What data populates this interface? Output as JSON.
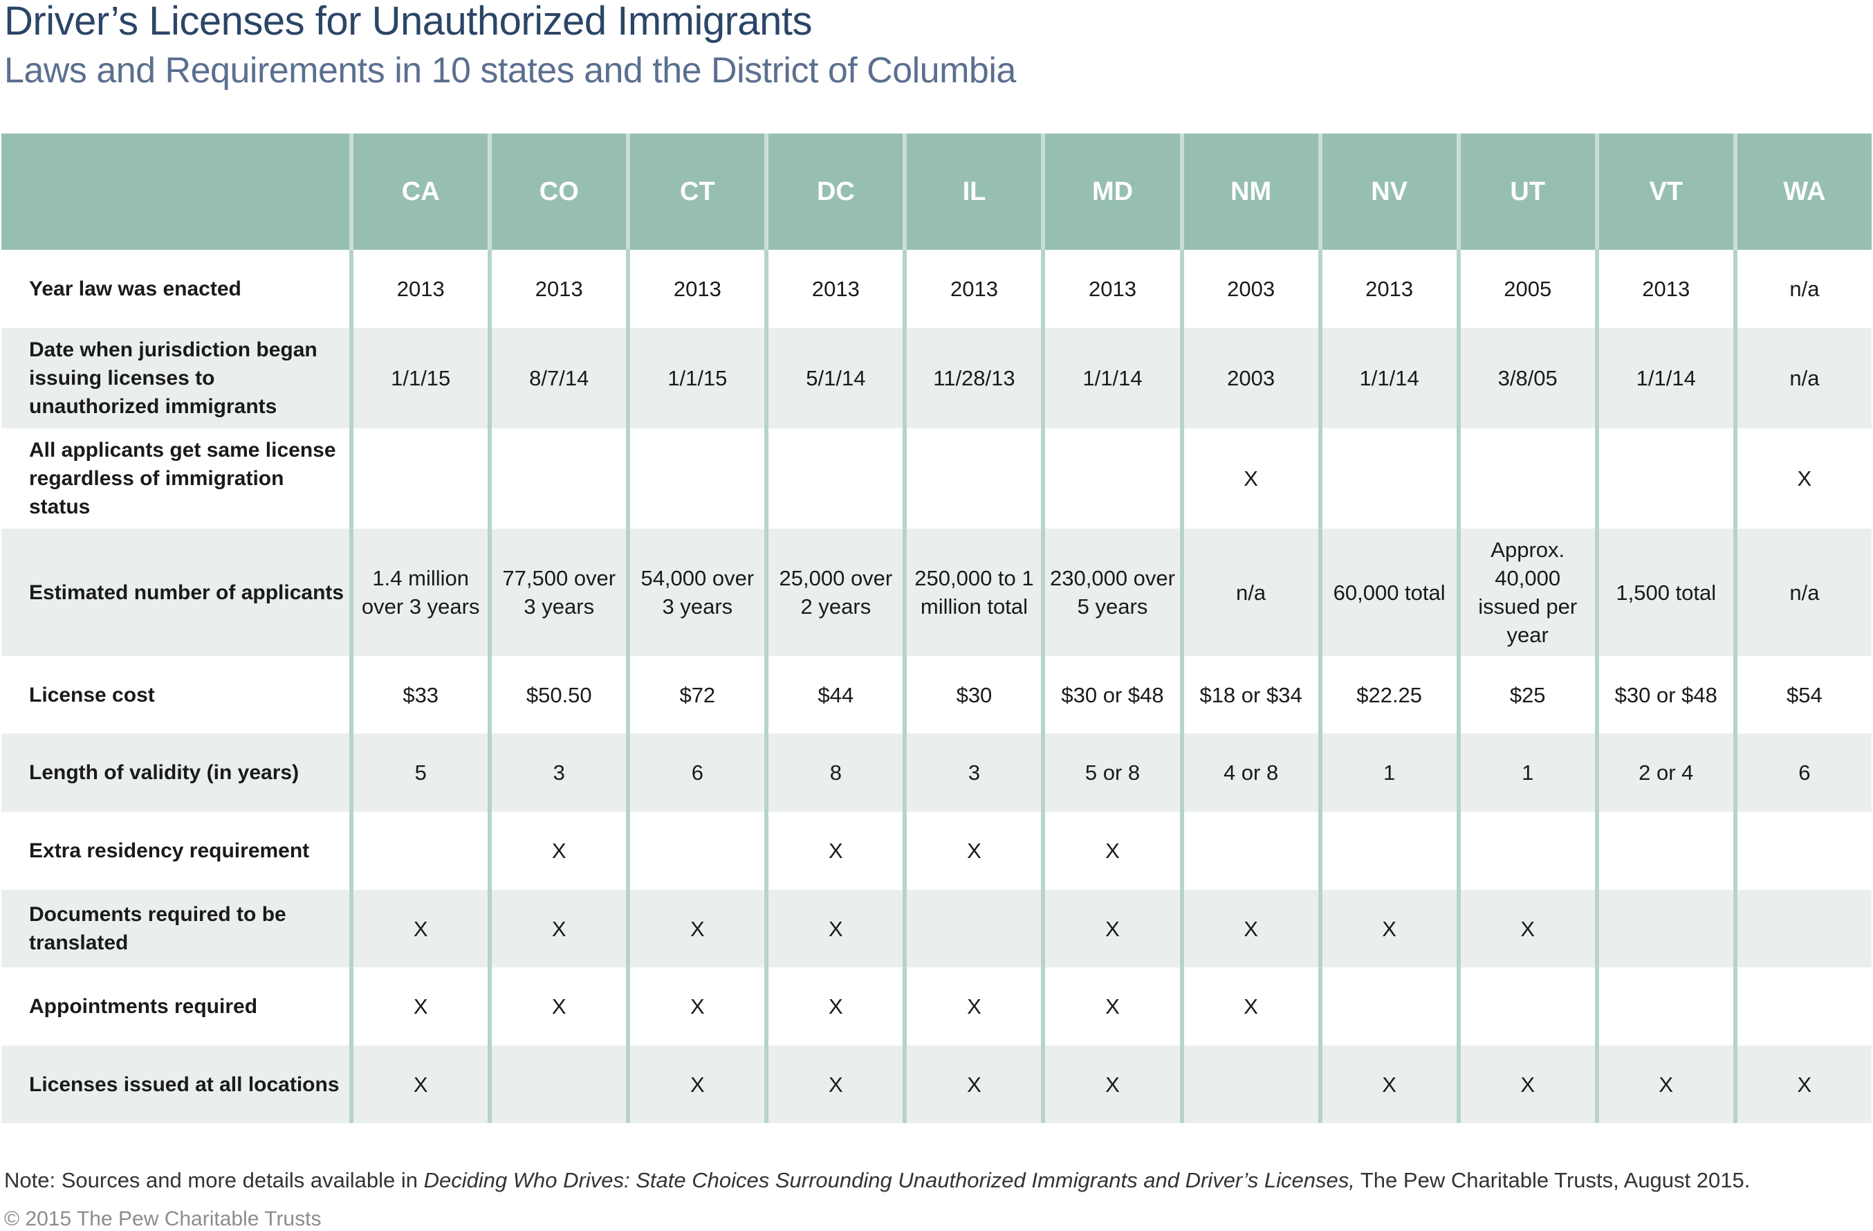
{
  "title": "Driver’s Licenses for Unauthorized Immigrants",
  "subtitle": "Laws and Requirements in 10 states and the District of Columbia",
  "chart_data": {
    "type": "table",
    "columns": [
      "",
      "CA",
      "CO",
      "CT",
      "DC",
      "IL",
      "MD",
      "NM",
      "NV",
      "UT",
      "VT",
      "WA"
    ],
    "rows": [
      {
        "label": "Year  law was enacted",
        "cells": [
          "2013",
          "2013",
          "2013",
          "2013",
          "2013",
          "2013",
          "2003",
          "2013",
          "2005",
          "2013",
          "n/a"
        ]
      },
      {
        "label": "Date when jurisdiction began issuing licenses to unauthorized immigrants",
        "cells": [
          "1/1/15",
          "8/7/14",
          "1/1/15",
          "5/1/14",
          "11/28/13",
          "1/1/14",
          "2003",
          "1/1/14",
          "3/8/05",
          "1/1/14",
          "n/a"
        ]
      },
      {
        "label": "All applicants get same license regardless of immigration status",
        "cells": [
          "",
          "",
          "",
          "",
          "",
          "",
          "X",
          "",
          "",
          "",
          "X"
        ]
      },
      {
        "label": "Estimated number of applicants",
        "cells": [
          "1.4 million over 3 years",
          "77,500 over 3 years",
          "54,000 over 3 years",
          "25,000 over 2 years",
          "250,000 to 1 million total",
          "230,000 over 5 years",
          "n/a",
          "60,000 total",
          "Approx. 40,000 issued per year",
          "1,500 total",
          "n/a"
        ]
      },
      {
        "label": "License cost",
        "cells": [
          "$33",
          "$50.50",
          "$72",
          "$44",
          "$30",
          "$30 or $48",
          "$18 or $34",
          "$22.25",
          "$25",
          "$30 or $48",
          "$54"
        ]
      },
      {
        "label": "Length of validity (in years)",
        "cells": [
          "5",
          "3",
          "6",
          "8",
          "3",
          "5 or 8",
          "4 or 8",
          "1",
          "1",
          "2 or 4",
          "6"
        ]
      },
      {
        "label": "Extra residency requirement",
        "cells": [
          "",
          "X",
          "",
          "X",
          "X",
          "X",
          "",
          "",
          "",
          "",
          ""
        ]
      },
      {
        "label": "Documents required to  be translated",
        "cells": [
          "X",
          "X",
          "X",
          "X",
          "",
          "X",
          "X",
          "X",
          "X",
          "",
          ""
        ]
      },
      {
        "label": "Appointments required",
        "cells": [
          "X",
          "X",
          "X",
          "X",
          "X",
          "X",
          "X",
          "",
          "",
          "",
          ""
        ]
      },
      {
        "label": "Licenses issued at all locations",
        "cells": [
          "X",
          "",
          "X",
          "X",
          "X",
          "X",
          "",
          "X",
          "X",
          "X",
          "X"
        ]
      }
    ]
  },
  "note": {
    "prefix": "Note: Sources and more details available in ",
    "italic": "Deciding Who Drives: State Choices Surrounding Unauthorized Immigrants and Driver’s Licenses,",
    "suffix": " The Pew Charitable Trusts, August 2015."
  },
  "copyright": "© 2015 The Pew Charitable Trusts"
}
